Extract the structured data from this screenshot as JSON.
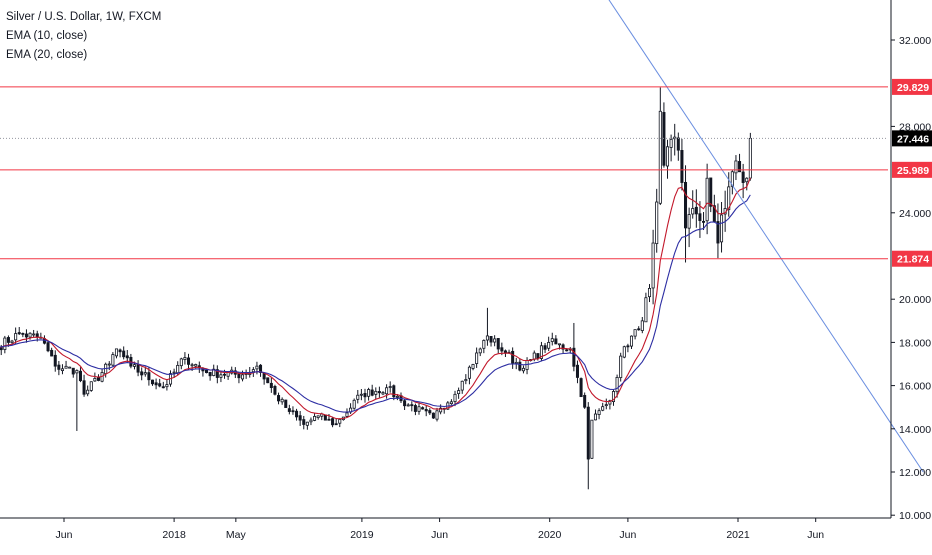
{
  "legend": {
    "symbol": "Silver / U.S. Dollar, 1W, FXCM",
    "ema10": "EMA (10, close)",
    "ema20": "EMA (20, close)"
  },
  "colors": {
    "horizontal_line": "#f23645",
    "trendline": "#6a8ee0",
    "ema10": "#c2182b",
    "ema20": "#2d2ea3",
    "candle_up": "#ffffff",
    "candle_down": "#131722",
    "last_price_tag": "#000000",
    "level_tag": "#f23645",
    "dotted_price_line": "#9598a1"
  },
  "chart_data": {
    "type": "candlestick",
    "symbol": "Silver / U.S. Dollar",
    "interval": "1W",
    "ylim": [
      10.0,
      33.7
    ],
    "y_ticks": [
      "32.000",
      "28.000",
      "24.000",
      "20.000",
      "18.000",
      "16.000",
      "14.000",
      "12.000",
      "10.000"
    ],
    "x_tick_labels": [
      "Jun",
      "2018",
      "May",
      "2019",
      "Jun",
      "2020",
      "Jun",
      "2021",
      "Jun"
    ],
    "last_price": {
      "value": 27.446,
      "label": "27.446"
    },
    "horizontal_levels": [
      {
        "value": 29.829,
        "label": "29.829"
      },
      {
        "value": 25.989,
        "label": "25.989"
      },
      {
        "value": 21.874,
        "label": "21.874"
      }
    ],
    "trendline": {
      "start": [
        "2020-02-17",
        36.3
      ],
      "end": [
        "2021-12-27",
        12.0
      ]
    },
    "anchors": [
      [
        "2017-01-23",
        17.8
      ],
      [
        "2017-03-06",
        18.4
      ],
      [
        "2017-04-17",
        18.2
      ],
      [
        "2017-05-15",
        16.9
      ],
      [
        "2017-06-26",
        16.7
      ],
      [
        "2017-07-10",
        15.6
      ],
      [
        "2017-08-28",
        17.0
      ],
      [
        "2017-09-11",
        17.7
      ],
      [
        "2017-10-09",
        16.9
      ],
      [
        "2017-12-11",
        15.9
      ],
      [
        "2018-01-22",
        17.3
      ],
      [
        "2018-03-05",
        16.6
      ],
      [
        "2018-05-14",
        16.5
      ],
      [
        "2018-06-11",
        16.9
      ],
      [
        "2018-07-16",
        15.6
      ],
      [
        "2018-08-13",
        14.8
      ],
      [
        "2018-09-10",
        14.2
      ],
      [
        "2018-10-08",
        14.6
      ],
      [
        "2018-11-12",
        14.2
      ],
      [
        "2018-12-31",
        15.6
      ],
      [
        "2019-02-18",
        15.9
      ],
      [
        "2019-03-18",
        15.3
      ],
      [
        "2019-05-20",
        14.5
      ],
      [
        "2019-06-17",
        15.2
      ],
      [
        "2019-07-15",
        16.2
      ],
      [
        "2019-09-02",
        18.3
      ],
      [
        "2019-10-07",
        17.5
      ],
      [
        "2019-11-11",
        16.8
      ],
      [
        "2019-12-30",
        18.0
      ],
      [
        "2020-02-10",
        17.7
      ],
      [
        "2020-03-09",
        15.0
      ],
      [
        "2020-03-16",
        12.6
      ],
      [
        "2020-03-23",
        14.4
      ],
      [
        "2020-04-27",
        15.3
      ],
      [
        "2020-05-25",
        17.8
      ],
      [
        "2020-06-22",
        18.6
      ],
      [
        "2020-07-13",
        20.5
      ],
      [
        "2020-07-20",
        22.6
      ],
      [
        "2020-07-27",
        24.5
      ],
      [
        "2020-08-03",
        28.7
      ],
      [
        "2020-08-10",
        26.2
      ],
      [
        "2020-08-24",
        27.4
      ],
      [
        "2020-09-07",
        26.9
      ],
      [
        "2020-09-21",
        23.3
      ],
      [
        "2020-10-05",
        24.2
      ],
      [
        "2020-10-26",
        23.6
      ],
      [
        "2020-11-02",
        25.6
      ],
      [
        "2020-11-09",
        24.3
      ],
      [
        "2020-11-23",
        22.6
      ],
      [
        "2020-11-30",
        23.9
      ],
      [
        "2020-12-07",
        24.2
      ],
      [
        "2020-12-14",
        25.2
      ],
      [
        "2020-12-21",
        25.9
      ],
      [
        "2020-12-28",
        26.4
      ],
      [
        "2021-01-04",
        25.9
      ],
      [
        "2021-01-11",
        25.4
      ],
      [
        "2021-01-18",
        25.6
      ],
      [
        "2021-01-25",
        27.4
      ]
    ],
    "series": [
      {
        "name": "EMA (10, close)",
        "period": 10
      },
      {
        "name": "EMA (20, close)",
        "period": 20
      }
    ]
  }
}
